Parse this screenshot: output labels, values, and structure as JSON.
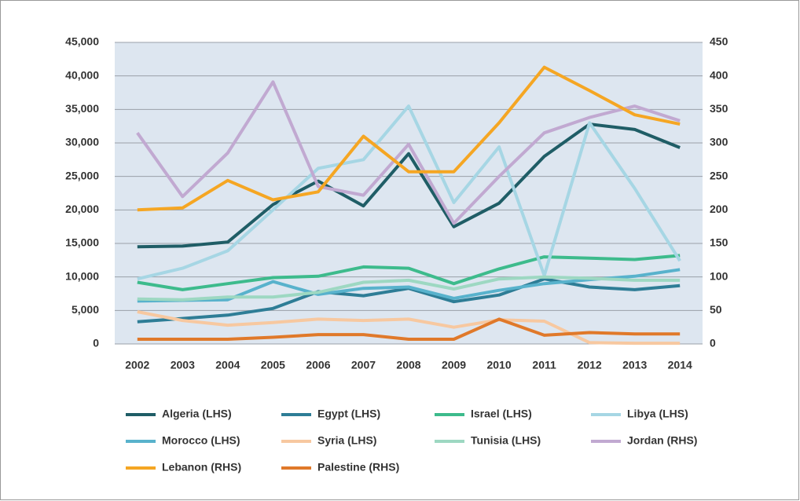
{
  "chart_data": {
    "type": "line",
    "categories": [
      "2002",
      "2003",
      "2004",
      "2005",
      "2006",
      "2007",
      "2008",
      "2009",
      "2010",
      "2011",
      "2012",
      "2013",
      "2014"
    ],
    "ylim": [
      0,
      45000
    ],
    "yticks": [
      0,
      {
        "value": 5000,
        "label": "5,000"
      },
      {
        "value": 10000,
        "label": "10,000"
      },
      {
        "value": 15000,
        "label": "15,000"
      },
      {
        "value": 20000,
        "label": "20,000"
      },
      {
        "value": 25000,
        "label": "25,000"
      },
      {
        "value": 30000,
        "label": "30,000"
      },
      {
        "value": 35000,
        "label": "35,000"
      },
      {
        "value": 40000,
        "label": "40,000"
      },
      {
        "value": 45000,
        "label": "45,000"
      }
    ],
    "y2lim": [
      0,
      450
    ],
    "y2ticks": [
      0,
      50,
      100,
      150,
      200,
      250,
      300,
      350,
      400,
      450
    ],
    "grid": true,
    "series": [
      {
        "name": "Algeria (LHS)",
        "color": "#1f5d66",
        "values": [
          14500,
          14600,
          15200,
          20800,
          24300,
          20600,
          28400,
          17500,
          21000,
          28000,
          32800,
          32000,
          29300
        ]
      },
      {
        "name": "Egypt (LHS)",
        "color": "#2e7d96",
        "values": [
          3300,
          3800,
          4300,
          5300,
          7800,
          7200,
          8300,
          6300,
          7300,
          9700,
          8500,
          8100,
          8700
        ]
      },
      {
        "name": "Israel (LHS)",
        "color": "#3dbb8c",
        "values": [
          9200,
          8100,
          9000,
          9900,
          10100,
          11500,
          11300,
          9000,
          11200,
          13000,
          12800,
          12600,
          13200
        ]
      },
      {
        "name": "Libya (LHS)",
        "color": "#a6d6e4",
        "values": [
          9700,
          11300,
          13900,
          20000,
          26200,
          27500,
          35500,
          21100,
          29400,
          10200,
          33000,
          23200,
          12400
        ]
      },
      {
        "name": "Morocco (LHS)",
        "color": "#58b2cc",
        "values": [
          6400,
          6500,
          6600,
          9300,
          7400,
          8300,
          8500,
          6800,
          8000,
          9000,
          9600,
          10100,
          11100
        ]
      },
      {
        "name": "Syria (LHS)",
        "color": "#f7c8a0",
        "values": [
          4800,
          3500,
          2800,
          3200,
          3700,
          3500,
          3700,
          2500,
          3600,
          3400,
          200,
          100,
          100
        ]
      },
      {
        "name": "Tunisia (LHS)",
        "color": "#9dd8c2",
        "values": [
          6700,
          6600,
          7000,
          7000,
          7700,
          9200,
          9500,
          8200,
          9700,
          10000,
          9800,
          9500,
          9500
        ]
      },
      {
        "name": "Jordan (RHS)",
        "color": "#c1a9d1",
        "axis": "y2",
        "values": [
          315,
          220,
          285,
          391,
          235,
          222,
          298,
          180,
          250,
          315,
          338,
          355,
          333
        ]
      },
      {
        "name": "Lebanon (RHS)",
        "color": "#f5a623",
        "axis": "y2",
        "values": [
          200,
          203,
          244,
          215,
          227,
          310,
          257,
          257,
          330,
          413,
          378,
          342,
          328
        ]
      },
      {
        "name": "Palestine (RHS)",
        "color": "#e0792a",
        "axis": "y2",
        "values": [
          7,
          7,
          7,
          10,
          14,
          14,
          7,
          7,
          37,
          13,
          17,
          15,
          15
        ]
      }
    ]
  }
}
